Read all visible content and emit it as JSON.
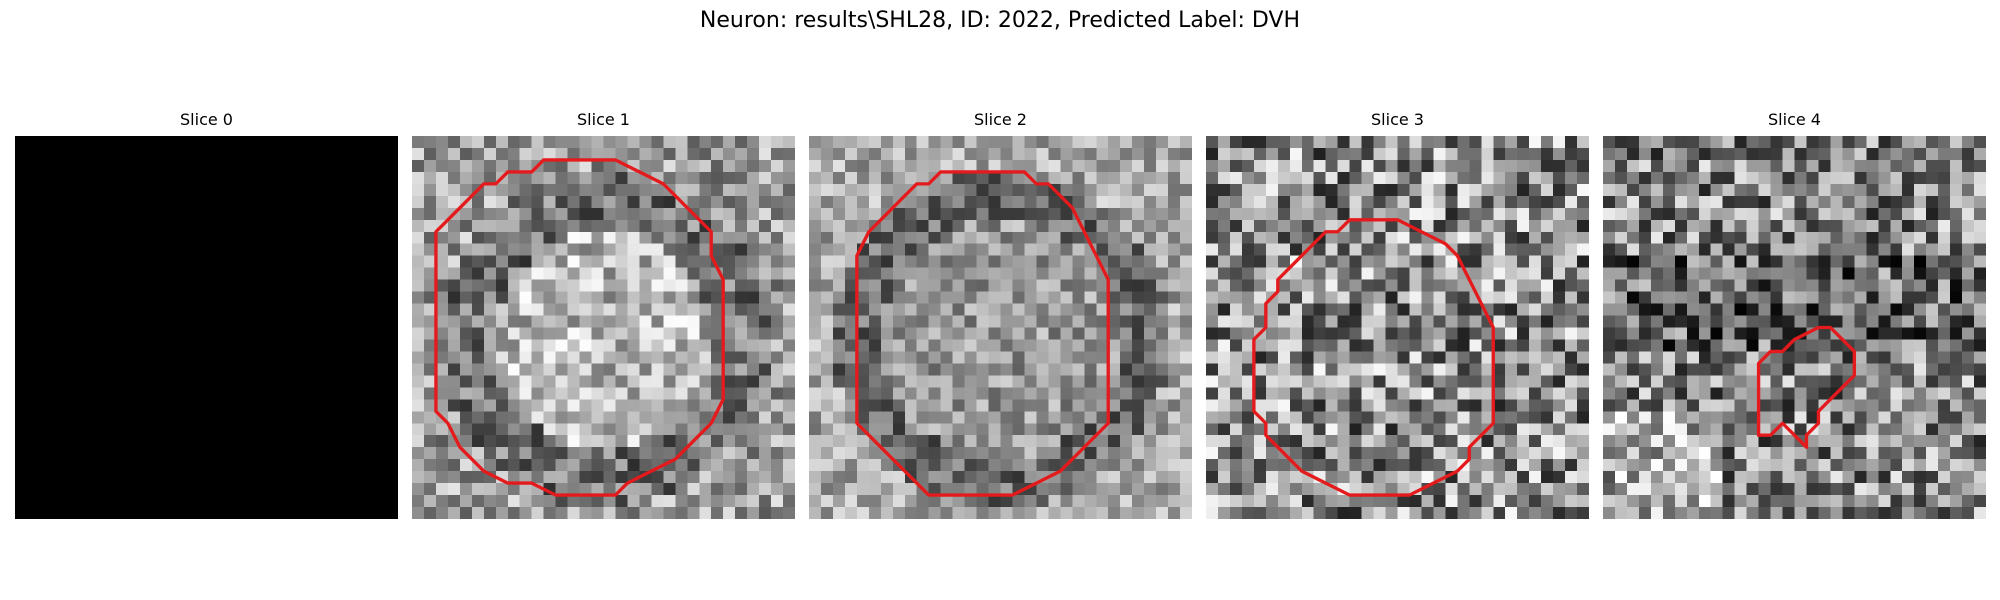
{
  "figure": {
    "title": "Neuron: results\\SHL28, ID: 2022, Predicted Label: DVH"
  },
  "slices": [
    {
      "title": "Slice 0",
      "pattern": "blank",
      "seed": 1,
      "contour": []
    },
    {
      "title": "Slice 1",
      "pattern": "ring-bright-center",
      "seed": 11,
      "contour": [
        [
          15,
          2
        ],
        [
          17,
          2
        ],
        [
          19,
          3
        ],
        [
          21,
          4
        ],
        [
          22,
          5
        ],
        [
          23,
          6
        ],
        [
          25,
          8
        ],
        [
          25,
          10
        ],
        [
          26,
          12
        ],
        [
          26,
          16
        ],
        [
          26,
          22
        ],
        [
          25,
          24
        ],
        [
          24,
          25
        ],
        [
          23,
          26
        ],
        [
          22,
          27
        ],
        [
          20,
          28
        ],
        [
          18,
          29
        ],
        [
          17,
          30
        ],
        [
          15,
          30
        ],
        [
          12,
          30
        ],
        [
          10,
          29
        ],
        [
          8,
          29
        ],
        [
          6,
          28
        ],
        [
          5,
          27
        ],
        [
          4,
          26
        ],
        [
          3,
          24
        ],
        [
          2,
          23
        ],
        [
          2,
          20
        ],
        [
          2,
          15
        ],
        [
          2,
          10
        ],
        [
          2,
          8
        ],
        [
          3,
          7
        ],
        [
          4,
          6
        ],
        [
          5,
          5
        ],
        [
          6,
          4
        ],
        [
          7,
          4
        ],
        [
          8,
          3
        ],
        [
          9,
          3
        ],
        [
          10,
          3
        ],
        [
          11,
          2
        ],
        [
          13,
          2
        ]
      ],
      "contour_color": "#e41a1c"
    },
    {
      "title": "Slice 2",
      "pattern": "ring-even-center",
      "seed": 23,
      "contour": [
        [
          12,
          3
        ],
        [
          14,
          3
        ],
        [
          16,
          3
        ],
        [
          18,
          3
        ],
        [
          19,
          4
        ],
        [
          20,
          4
        ],
        [
          21,
          5
        ],
        [
          22,
          6
        ],
        [
          23,
          8
        ],
        [
          24,
          10
        ],
        [
          25,
          12
        ],
        [
          25,
          18
        ],
        [
          25,
          24
        ],
        [
          24,
          25
        ],
        [
          23,
          26
        ],
        [
          22,
          27
        ],
        [
          21,
          28
        ],
        [
          19,
          29
        ],
        [
          17,
          30
        ],
        [
          13,
          30
        ],
        [
          10,
          30
        ],
        [
          9,
          29
        ],
        [
          8,
          28
        ],
        [
          7,
          27
        ],
        [
          6,
          26
        ],
        [
          5,
          25
        ],
        [
          4,
          24
        ],
        [
          4,
          20
        ],
        [
          4,
          15
        ],
        [
          4,
          10
        ],
        [
          5,
          8
        ],
        [
          6,
          7
        ],
        [
          7,
          6
        ],
        [
          8,
          5
        ],
        [
          9,
          4
        ],
        [
          10,
          4
        ],
        [
          11,
          3
        ]
      ],
      "contour_color": "#e41a1c"
    },
    {
      "title": "Slice 3",
      "pattern": "noise-ring",
      "seed": 37,
      "contour": [
        [
          13,
          7
        ],
        [
          16,
          7
        ],
        [
          18,
          8
        ],
        [
          20,
          9
        ],
        [
          21,
          10
        ],
        [
          22,
          12
        ],
        [
          23,
          14
        ],
        [
          24,
          16
        ],
        [
          24,
          18
        ],
        [
          24,
          21
        ],
        [
          24,
          24
        ],
        [
          23,
          25
        ],
        [
          22,
          26
        ],
        [
          22,
          27
        ],
        [
          21,
          28
        ],
        [
          19,
          29
        ],
        [
          17,
          30
        ],
        [
          15,
          30
        ],
        [
          12,
          30
        ],
        [
          10,
          29
        ],
        [
          8,
          28
        ],
        [
          7,
          27
        ],
        [
          6,
          26
        ],
        [
          5,
          25
        ],
        [
          5,
          24
        ],
        [
          4,
          23
        ],
        [
          4,
          19
        ],
        [
          4,
          17
        ],
        [
          5,
          16
        ],
        [
          5,
          14
        ],
        [
          6,
          13
        ],
        [
          6,
          12
        ],
        [
          7,
          11
        ],
        [
          8,
          10
        ],
        [
          9,
          9
        ],
        [
          10,
          8
        ],
        [
          11,
          8
        ],
        [
          12,
          7
        ]
      ],
      "contour_color": "#e41a1c"
    },
    {
      "title": "Slice 4",
      "pattern": "noise-dark",
      "seed": 53,
      "contour": [
        [
          16,
          17
        ],
        [
          18,
          16
        ],
        [
          19,
          16
        ],
        [
          20,
          17
        ],
        [
          21,
          18
        ],
        [
          21,
          20
        ],
        [
          20,
          21
        ],
        [
          19,
          22
        ],
        [
          18,
          23
        ],
        [
          18,
          24
        ],
        [
          17,
          25
        ],
        [
          17,
          26
        ],
        [
          16,
          25
        ],
        [
          15,
          24
        ],
        [
          14,
          25
        ],
        [
          13,
          25
        ],
        [
          13,
          24
        ],
        [
          13,
          20
        ],
        [
          13,
          19
        ],
        [
          14,
          18
        ],
        [
          15,
          18
        ]
      ],
      "contour_color": "#e41a1c"
    }
  ]
}
